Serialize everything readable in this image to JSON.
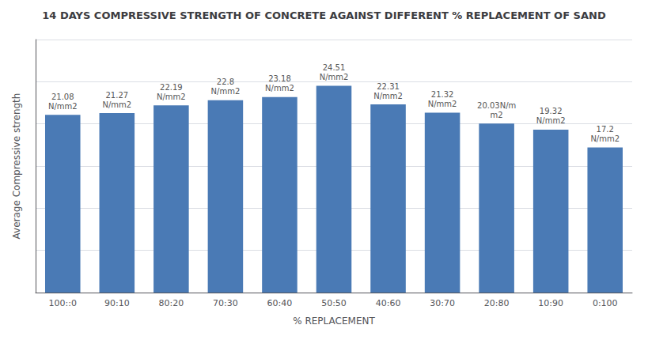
{
  "chart_data": {
    "type": "bar",
    "title": "14 DAYS COMPRESSIVE STRENGTH OF CONCRETE AGAINST DIFFERENT % REPLACEMENT OF SAND",
    "xlabel": "% REPLACEMENT",
    "ylabel": "Average Compressive strength",
    "categories": [
      "100::0",
      "90:10",
      "80:20",
      "70:30",
      "60:40",
      "50:50",
      "40:60",
      "30:70",
      "20:80",
      "10:90",
      "0:100"
    ],
    "values": [
      21.08,
      21.27,
      22.19,
      22.8,
      23.18,
      24.51,
      22.31,
      21.32,
      20.03,
      19.32,
      17.2
    ],
    "value_labels": [
      "21.08\nN/mm2",
      "21.27\nN/mm2",
      "22.19\nN/mm2",
      "22.8\nN/mm2",
      "23.18\nN/mm2",
      "24.51\nN/mm2",
      "22.31\nN/mm2",
      "21.32\nN/mm2",
      "20.03N/m\nm2",
      "19.32\nN/mm2",
      "17.2\nN/mm2"
    ],
    "data_labels": true,
    "color": "#4a7ab5",
    "ylim": [
      0,
      30
    ],
    "yticks": [
      0,
      5,
      10,
      15,
      20,
      25,
      30
    ],
    "grid": true,
    "tick_labels": "x"
  }
}
